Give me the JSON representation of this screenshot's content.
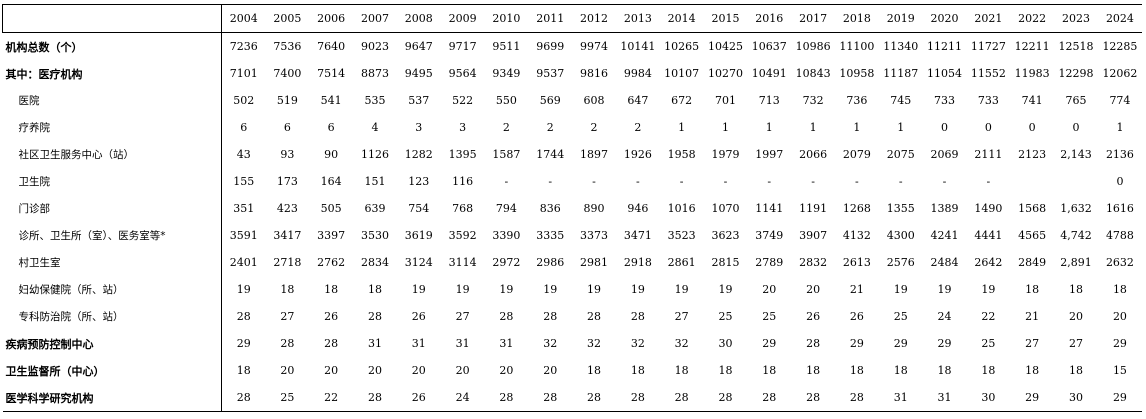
{
  "table": {
    "years": [
      "2004",
      "2005",
      "2006",
      "2007",
      "2008",
      "2009",
      "2010",
      "2011",
      "2012",
      "2013",
      "2014",
      "2015",
      "2016",
      "2017",
      "2018",
      "2019",
      "2020",
      "2021",
      "2022",
      "2023",
      "2024"
    ],
    "rows": [
      {
        "label": "机构总数（个）",
        "style": "bold",
        "values": [
          "7236",
          "7536",
          "7640",
          "9023",
          "9647",
          "9717",
          "9511",
          "9699",
          "9974",
          "10141",
          "10265",
          "10425",
          "10637",
          "10986",
          "11100",
          "11340",
          "11211",
          "11727",
          "12211",
          "12518",
          "12285"
        ]
      },
      {
        "label": "其中：医疗机构",
        "style": "bold",
        "values": [
          "7101",
          "7400",
          "7514",
          "8873",
          "9495",
          "9564",
          "9349",
          "9537",
          "9816",
          "9984",
          "10107",
          "10270",
          "10491",
          "10843",
          "10958",
          "11187",
          "11054",
          "11552",
          "11983",
          "12298",
          "12062"
        ]
      },
      {
        "label": "医院",
        "style": "sub",
        "values": [
          "502",
          "519",
          "541",
          "535",
          "537",
          "522",
          "550",
          "569",
          "608",
          "647",
          "672",
          "701",
          "713",
          "732",
          "736",
          "745",
          "733",
          "733",
          "741",
          "765",
          "774"
        ]
      },
      {
        "label": "疗养院",
        "style": "sub",
        "values": [
          "6",
          "6",
          "6",
          "4",
          "3",
          "3",
          "2",
          "2",
          "2",
          "2",
          "1",
          "1",
          "1",
          "1",
          "1",
          "1",
          "0",
          "0",
          "0",
          "0",
          "1"
        ]
      },
      {
        "label": "社区卫生服务中心（站）",
        "style": "sub",
        "values": [
          "43",
          "93",
          "90",
          "1126",
          "1282",
          "1395",
          "1587",
          "1744",
          "1897",
          "1926",
          "1958",
          "1979",
          "1997",
          "2066",
          "2079",
          "2075",
          "2069",
          "2111",
          "2123",
          "2,143",
          "2136"
        ]
      },
      {
        "label": "卫生院",
        "style": "sub",
        "values": [
          "155",
          "173",
          "164",
          "151",
          "123",
          "116",
          "-",
          "-",
          "-",
          "-",
          "-",
          "-",
          "-",
          "-",
          "-",
          "-",
          "-",
          "-",
          "",
          "",
          "0"
        ]
      },
      {
        "label": "门诊部",
        "style": "sub",
        "values": [
          "351",
          "423",
          "505",
          "639",
          "754",
          "768",
          "794",
          "836",
          "890",
          "946",
          "1016",
          "1070",
          "1141",
          "1191",
          "1268",
          "1355",
          "1389",
          "1490",
          "1568",
          "1,632",
          "1616"
        ]
      },
      {
        "label": "诊所、卫生所（室）、医务室等*",
        "style": "sub",
        "values": [
          "3591",
          "3417",
          "3397",
          "3530",
          "3619",
          "3592",
          "3390",
          "3335",
          "3373",
          "3471",
          "3523",
          "3623",
          "3749",
          "3907",
          "4132",
          "4300",
          "4241",
          "4441",
          "4565",
          "4,742",
          "4788"
        ]
      },
      {
        "label": "村卫生室",
        "style": "sub",
        "values": [
          "2401",
          "2718",
          "2762",
          "2834",
          "3124",
          "3114",
          "2972",
          "2986",
          "2981",
          "2918",
          "2861",
          "2815",
          "2789",
          "2832",
          "2613",
          "2576",
          "2484",
          "2642",
          "2849",
          "2,891",
          "2632"
        ]
      },
      {
        "label": "妇幼保健院（所、站）",
        "style": "sub",
        "values": [
          "19",
          "18",
          "18",
          "18",
          "19",
          "19",
          "19",
          "19",
          "19",
          "19",
          "19",
          "19",
          "20",
          "20",
          "21",
          "19",
          "19",
          "19",
          "18",
          "18",
          "18"
        ]
      },
      {
        "label": "专科防治院（所、站）",
        "style": "sub",
        "values": [
          "28",
          "27",
          "26",
          "28",
          "26",
          "27",
          "28",
          "28",
          "28",
          "28",
          "27",
          "25",
          "25",
          "26",
          "26",
          "25",
          "24",
          "22",
          "21",
          "20",
          "20"
        ]
      },
      {
        "label": "疾病预防控制中心",
        "style": "bold",
        "values": [
          "29",
          "28",
          "28",
          "31",
          "31",
          "31",
          "31",
          "32",
          "32",
          "32",
          "32",
          "30",
          "29",
          "28",
          "29",
          "29",
          "29",
          "25",
          "27",
          "27",
          "29"
        ]
      },
      {
        "label": "卫生监督所（中心）",
        "style": "bold",
        "values": [
          "18",
          "20",
          "20",
          "20",
          "20",
          "20",
          "20",
          "20",
          "18",
          "18",
          "18",
          "18",
          "18",
          "18",
          "18",
          "18",
          "18",
          "18",
          "18",
          "18",
          "15"
        ]
      },
      {
        "label": "医学科学研究机构",
        "style": "bold",
        "values": [
          "28",
          "25",
          "22",
          "28",
          "26",
          "24",
          "28",
          "28",
          "28",
          "28",
          "28",
          "28",
          "28",
          "28",
          "28",
          "31",
          "31",
          "30",
          "29",
          "30",
          "29"
        ]
      }
    ]
  }
}
